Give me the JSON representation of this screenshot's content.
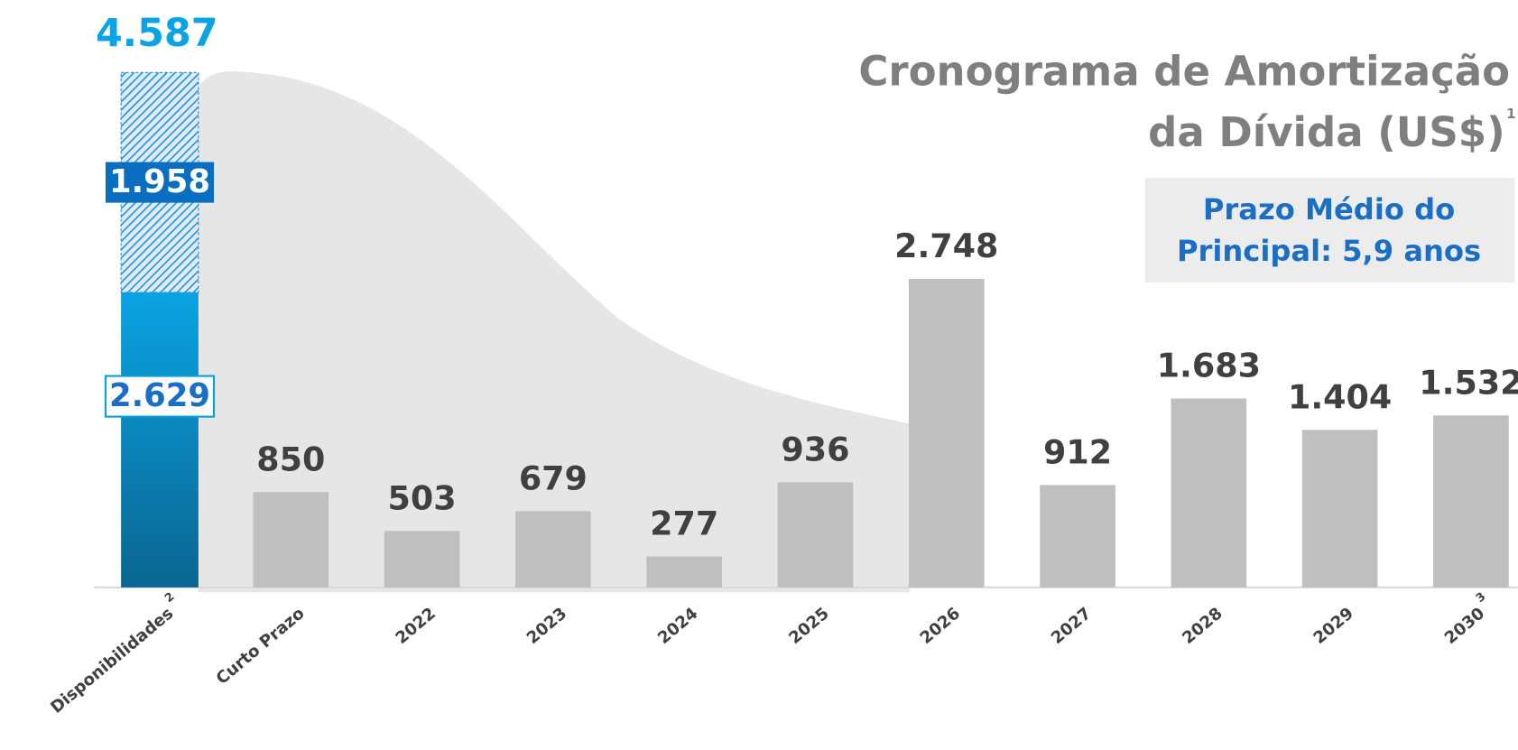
{
  "chart_data": {
    "type": "bar",
    "title": [
      "Cronograma de Amortização",
      "da Dívida (US$)"
    ],
    "title_note": "1",
    "annotation": [
      "Prazo Médio do",
      "Principal: 5,9 anos"
    ],
    "categories": [
      "Disponibilidades",
      "Curto Prazo",
      "2022",
      "2023",
      "2024",
      "2025",
      "2026",
      "2027",
      "2028",
      "2029",
      "2030"
    ],
    "category_notes": [
      "2",
      null,
      null,
      null,
      null,
      null,
      null,
      null,
      null,
      null,
      "3"
    ],
    "values": [
      null,
      850,
      503,
      679,
      277,
      936,
      2748,
      912,
      1683,
      1404,
      1532
    ],
    "value_labels": [
      null,
      "850",
      "503",
      "679",
      "277",
      "936",
      "2.748",
      "912",
      "1.683",
      "1.404",
      "1.532"
    ],
    "color": "#bfbfbf",
    "cash": {
      "segments": [
        {
          "value": 2629,
          "label": "2.629",
          "color": "#0a9fe0"
        },
        {
          "value": 1958,
          "label": "1.958",
          "color": "#2a8fd8",
          "pattern": "hatch"
        }
      ],
      "total": 4587,
      "total_label": "4.587"
    },
    "ylim": [
      0,
      5000
    ]
  }
}
